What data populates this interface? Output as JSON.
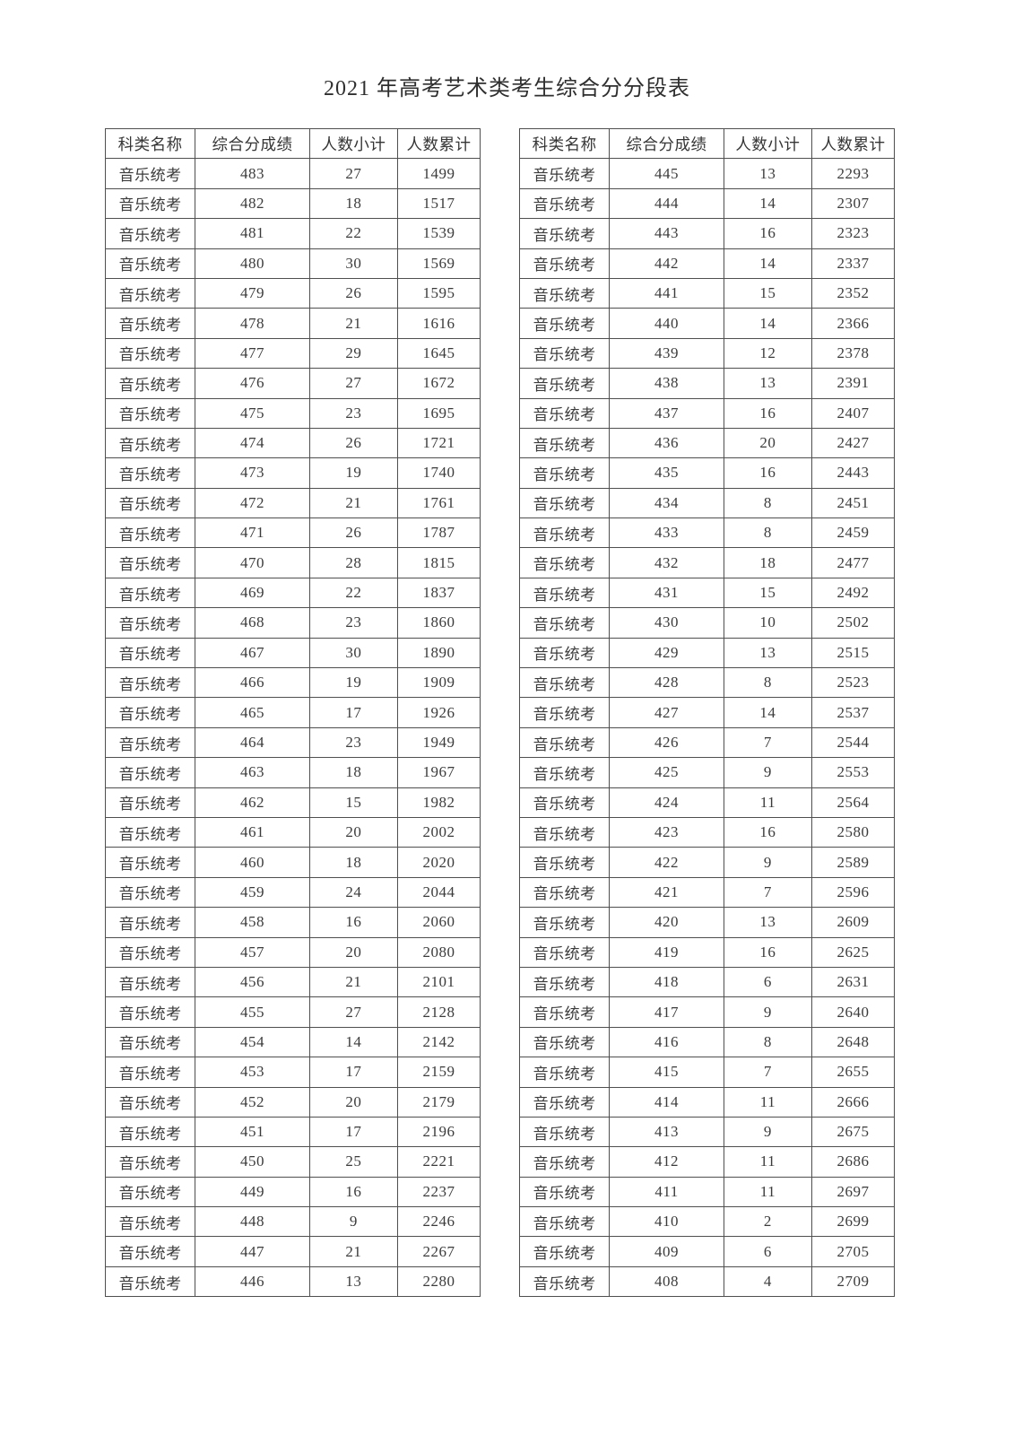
{
  "title": "2021 年高考艺术类考生综合分分段表",
  "headers": [
    "科类名称",
    "综合分成绩",
    "人数小计",
    "人数累计"
  ],
  "header_keys": [
    "category",
    "score",
    "count",
    "cumulative"
  ],
  "tables": [
    {
      "rows": [
        [
          "音乐统考",
          483,
          27,
          1499
        ],
        [
          "音乐统考",
          482,
          18,
          1517
        ],
        [
          "音乐统考",
          481,
          22,
          1539
        ],
        [
          "音乐统考",
          480,
          30,
          1569
        ],
        [
          "音乐统考",
          479,
          26,
          1595
        ],
        [
          "音乐统考",
          478,
          21,
          1616
        ],
        [
          "音乐统考",
          477,
          29,
          1645
        ],
        [
          "音乐统考",
          476,
          27,
          1672
        ],
        [
          "音乐统考",
          475,
          23,
          1695
        ],
        [
          "音乐统考",
          474,
          26,
          1721
        ],
        [
          "音乐统考",
          473,
          19,
          1740
        ],
        [
          "音乐统考",
          472,
          21,
          1761
        ],
        [
          "音乐统考",
          471,
          26,
          1787
        ],
        [
          "音乐统考",
          470,
          28,
          1815
        ],
        [
          "音乐统考",
          469,
          22,
          1837
        ],
        [
          "音乐统考",
          468,
          23,
          1860
        ],
        [
          "音乐统考",
          467,
          30,
          1890
        ],
        [
          "音乐统考",
          466,
          19,
          1909
        ],
        [
          "音乐统考",
          465,
          17,
          1926
        ],
        [
          "音乐统考",
          464,
          23,
          1949
        ],
        [
          "音乐统考",
          463,
          18,
          1967
        ],
        [
          "音乐统考",
          462,
          15,
          1982
        ],
        [
          "音乐统考",
          461,
          20,
          2002
        ],
        [
          "音乐统考",
          460,
          18,
          2020
        ],
        [
          "音乐统考",
          459,
          24,
          2044
        ],
        [
          "音乐统考",
          458,
          16,
          2060
        ],
        [
          "音乐统考",
          457,
          20,
          2080
        ],
        [
          "音乐统考",
          456,
          21,
          2101
        ],
        [
          "音乐统考",
          455,
          27,
          2128
        ],
        [
          "音乐统考",
          454,
          14,
          2142
        ],
        [
          "音乐统考",
          453,
          17,
          2159
        ],
        [
          "音乐统考",
          452,
          20,
          2179
        ],
        [
          "音乐统考",
          451,
          17,
          2196
        ],
        [
          "音乐统考",
          450,
          25,
          2221
        ],
        [
          "音乐统考",
          449,
          16,
          2237
        ],
        [
          "音乐统考",
          448,
          9,
          2246
        ],
        [
          "音乐统考",
          447,
          21,
          2267
        ],
        [
          "音乐统考",
          446,
          13,
          2280
        ]
      ]
    },
    {
      "rows": [
        [
          "音乐统考",
          445,
          13,
          2293
        ],
        [
          "音乐统考",
          444,
          14,
          2307
        ],
        [
          "音乐统考",
          443,
          16,
          2323
        ],
        [
          "音乐统考",
          442,
          14,
          2337
        ],
        [
          "音乐统考",
          441,
          15,
          2352
        ],
        [
          "音乐统考",
          440,
          14,
          2366
        ],
        [
          "音乐统考",
          439,
          12,
          2378
        ],
        [
          "音乐统考",
          438,
          13,
          2391
        ],
        [
          "音乐统考",
          437,
          16,
          2407
        ],
        [
          "音乐统考",
          436,
          20,
          2427
        ],
        [
          "音乐统考",
          435,
          16,
          2443
        ],
        [
          "音乐统考",
          434,
          8,
          2451
        ],
        [
          "音乐统考",
          433,
          8,
          2459
        ],
        [
          "音乐统考",
          432,
          18,
          2477
        ],
        [
          "音乐统考",
          431,
          15,
          2492
        ],
        [
          "音乐统考",
          430,
          10,
          2502
        ],
        [
          "音乐统考",
          429,
          13,
          2515
        ],
        [
          "音乐统考",
          428,
          8,
          2523
        ],
        [
          "音乐统考",
          427,
          14,
          2537
        ],
        [
          "音乐统考",
          426,
          7,
          2544
        ],
        [
          "音乐统考",
          425,
          9,
          2553
        ],
        [
          "音乐统考",
          424,
          11,
          2564
        ],
        [
          "音乐统考",
          423,
          16,
          2580
        ],
        [
          "音乐统考",
          422,
          9,
          2589
        ],
        [
          "音乐统考",
          421,
          7,
          2596
        ],
        [
          "音乐统考",
          420,
          13,
          2609
        ],
        [
          "音乐统考",
          419,
          16,
          2625
        ],
        [
          "音乐统考",
          418,
          6,
          2631
        ],
        [
          "音乐统考",
          417,
          9,
          2640
        ],
        [
          "音乐统考",
          416,
          8,
          2648
        ],
        [
          "音乐统考",
          415,
          7,
          2655
        ],
        [
          "音乐统考",
          414,
          11,
          2666
        ],
        [
          "音乐统考",
          413,
          9,
          2675
        ],
        [
          "音乐统考",
          412,
          11,
          2686
        ],
        [
          "音乐统考",
          411,
          11,
          2697
        ],
        [
          "音乐统考",
          410,
          2,
          2699
        ],
        [
          "音乐统考",
          409,
          6,
          2705
        ],
        [
          "音乐统考",
          408,
          4,
          2709
        ]
      ]
    }
  ]
}
